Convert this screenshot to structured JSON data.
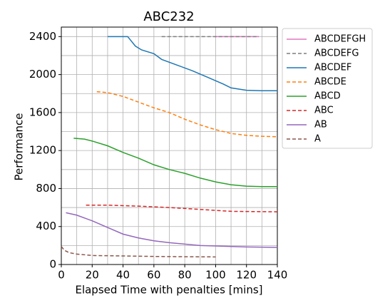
{
  "chart_data": {
    "type": "line",
    "title": "ABC232",
    "xlabel": "Elapsed Time with penalties [mins]",
    "ylabel": "Performance",
    "xlim": [
      0,
      140
    ],
    "ylim": [
      0,
      2500
    ],
    "xticks": [
      0,
      20,
      40,
      60,
      80,
      100,
      120,
      140
    ],
    "yticks": [
      0,
      400,
      800,
      1200,
      1600,
      2000,
      2400
    ],
    "x_minor_grid": [
      10,
      30,
      50,
      70,
      90,
      110,
      130
    ],
    "y_minor_grid": [
      200,
      600,
      1000,
      1400,
      1800,
      2200
    ],
    "grid": true,
    "legend": "outside right",
    "series": [
      {
        "name": "ABCDEFGH",
        "color": "#e377c2",
        "dashed": false,
        "x": [
          99,
          110,
          120,
          128
        ],
        "values": [
          2400,
          2400,
          2400,
          2400
        ]
      },
      {
        "name": "ABCDEFG",
        "color": "#7f7f7f",
        "dashed": true,
        "x": [
          65,
          80,
          100,
          120,
          128
        ],
        "values": [
          2400,
          2400,
          2400,
          2400,
          2400
        ]
      },
      {
        "name": "ABCDEF",
        "color": "#1f77b4",
        "dashed": false,
        "x": [
          30,
          43,
          48,
          52,
          60,
          65,
          75,
          85,
          95,
          105,
          110,
          120,
          130,
          140
        ],
        "values": [
          2400,
          2400,
          2300,
          2260,
          2220,
          2160,
          2100,
          2040,
          1970,
          1900,
          1860,
          1835,
          1830,
          1830
        ]
      },
      {
        "name": "ABCDE",
        "color": "#ff7f0e",
        "dashed": true,
        "x": [
          23,
          30,
          40,
          50,
          60,
          70,
          80,
          90,
          100,
          110,
          120,
          130,
          140
        ],
        "values": [
          1820,
          1810,
          1770,
          1710,
          1650,
          1600,
          1530,
          1470,
          1420,
          1380,
          1360,
          1350,
          1345
        ]
      },
      {
        "name": "ABCD",
        "color": "#2ca02c",
        "dashed": false,
        "x": [
          8,
          15,
          20,
          30,
          40,
          50,
          60,
          70,
          80,
          90,
          100,
          110,
          120,
          130,
          140
        ],
        "values": [
          1330,
          1320,
          1300,
          1250,
          1180,
          1120,
          1050,
          1000,
          960,
          910,
          870,
          840,
          825,
          820,
          820
        ]
      },
      {
        "name": "ABC",
        "color": "#d62728",
        "dashed": true,
        "x": [
          16,
          30,
          50,
          70,
          90,
          110,
          140
        ],
        "values": [
          625,
          625,
          615,
          600,
          580,
          560,
          555
        ]
      },
      {
        "name": "AB",
        "color": "#9467bd",
        "dashed": false,
        "x": [
          3,
          10,
          20,
          30,
          40,
          50,
          60,
          70,
          80,
          90,
          100,
          120,
          140
        ],
        "values": [
          545,
          520,
          460,
          390,
          320,
          280,
          250,
          230,
          215,
          200,
          195,
          185,
          180
        ]
      },
      {
        "name": "A",
        "color": "#8c564b",
        "dashed": true,
        "x": [
          0,
          2,
          5,
          10,
          20,
          40,
          60,
          80,
          100
        ],
        "values": [
          190,
          150,
          125,
          110,
          95,
          90,
          85,
          82,
          80
        ]
      }
    ]
  }
}
